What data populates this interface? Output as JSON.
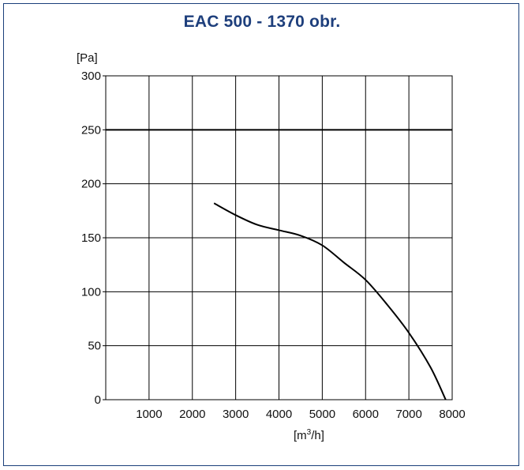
{
  "chart_data": {
    "type": "line",
    "title": "EAC 500 - 1370 obr.",
    "ylabel": "[Pa]",
    "xlabel_base": "[m",
    "xlabel_sup": "3",
    "xlabel_tail": "/h]",
    "xlim": [
      0,
      8000
    ],
    "ylim": [
      0,
      300
    ],
    "x_ticks": [
      1000,
      2000,
      3000,
      4000,
      5000,
      6000,
      7000,
      8000
    ],
    "y_ticks": [
      0,
      50,
      100,
      150,
      200,
      250,
      300
    ],
    "grid": true,
    "reference_line_y": 250,
    "series": [
      {
        "points": [
          [
            2500,
            182
          ],
          [
            3000,
            171
          ],
          [
            3500,
            162
          ],
          [
            4000,
            157
          ],
          [
            4500,
            152
          ],
          [
            5000,
            143
          ],
          [
            5500,
            127
          ],
          [
            6000,
            111
          ],
          [
            6500,
            88
          ],
          [
            7000,
            62
          ],
          [
            7500,
            30
          ],
          [
            7850,
            0
          ]
        ]
      }
    ]
  },
  "colors": {
    "title": "#1e3f7c",
    "frame": "#1a3f7a",
    "grid": "#000000",
    "curve": "#000000"
  }
}
